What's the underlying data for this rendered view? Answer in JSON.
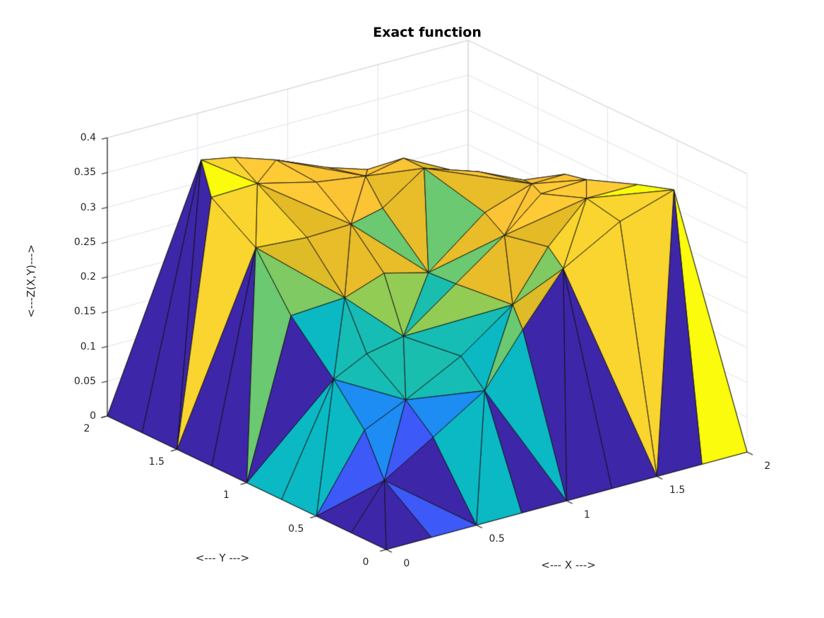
{
  "title": "Exact function",
  "axes": {
    "x": {
      "label": "<--- X --->",
      "ticks": [
        "0",
        "0.5",
        "1",
        "1.5",
        "2"
      ],
      "tick_values": [
        0,
        0.5,
        1,
        1.5,
        2
      ],
      "range": [
        0,
        2
      ]
    },
    "y": {
      "label": "<--- Y --->",
      "ticks": [
        "0",
        "0.5",
        "1",
        "1.5",
        "2"
      ],
      "tick_values": [
        0,
        0.5,
        1,
        1.5,
        2
      ],
      "range": [
        0,
        2
      ]
    },
    "z": {
      "label": "<---Z(X,Y)--->",
      "ticks": [
        "0",
        "0.05",
        "0.1",
        "0.15",
        "0.2",
        "0.25",
        "0.3",
        "0.35",
        "0.4"
      ],
      "tick_values": [
        0,
        0.05,
        0.1,
        0.15,
        0.2,
        0.25,
        0.3,
        0.35,
        0.4
      ],
      "range": [
        0,
        0.4
      ]
    }
  },
  "chart_data": {
    "type": "surface",
    "title": "Exact function",
    "surface_kind": "triangulated mesh (trisurf), flat shading, black mesh edges",
    "colormap": "parula",
    "clim": [
      0,
      0.375
    ],
    "view": {
      "azimuth": -37.5,
      "elevation": 30
    },
    "xlabel": "<--- X --->",
    "ylabel": "<--- Y --->",
    "zlabel": "<---Z(X,Y)--->",
    "xlim": [
      0,
      2
    ],
    "ylim": [
      0,
      2
    ],
    "zlim": [
      0,
      0.4
    ],
    "grid": true,
    "x_grid": [
      0,
      0.25,
      0.5,
      0.75,
      1,
      1.25,
      1.5,
      1.75,
      2
    ],
    "y_grid": [
      0,
      0.25,
      0.5,
      0.75,
      1,
      1.25,
      1.5,
      1.75,
      2
    ],
    "z_values": [
      [
        0,
        0,
        0,
        0,
        0,
        0,
        0,
        0,
        0
      ],
      [
        0,
        0.055,
        0.105,
        0.16,
        0.225,
        0.29,
        0.345,
        0.375,
        0
      ],
      [
        0,
        0.105,
        0.125,
        0.175,
        0.235,
        0.295,
        0.345,
        0.355,
        0
      ],
      [
        0,
        0.16,
        0.175,
        0.18,
        0.245,
        0.3,
        0.335,
        0.335,
        0
      ],
      [
        0,
        0.225,
        0.235,
        0.245,
        0.225,
        0.3,
        0.325,
        0.315,
        0
      ],
      [
        0,
        0.29,
        0.295,
        0.3,
        0.3,
        0.34,
        0.325,
        0.295,
        0
      ],
      [
        0,
        0.345,
        0.345,
        0.335,
        0.325,
        0.325,
        0.29,
        0.26,
        0
      ],
      [
        0,
        0.375,
        0.355,
        0.335,
        0.315,
        0.295,
        0.26,
        0.23,
        0
      ],
      [
        0,
        0,
        0,
        0,
        0,
        0,
        0,
        0,
        0
      ]
    ],
    "z_min": 0,
    "z_max": 0.375,
    "edge_color": "#111111"
  },
  "style": {
    "background": "#ffffff",
    "grid_color": "#e3e3e3",
    "box_edge_color": "#d4d4d4",
    "axis_color": "#1a1a1a",
    "tick_label_color": "#262626",
    "title_color": "#000000",
    "parula_low": "#3e26a8",
    "parula_high": "#f9fb0e"
  }
}
